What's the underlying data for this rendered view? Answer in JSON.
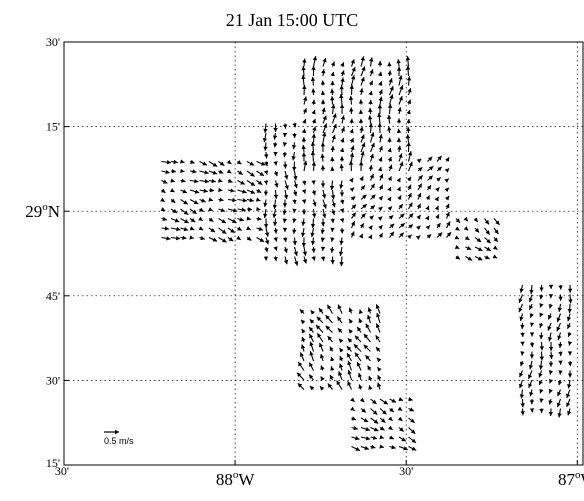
{
  "title": "21 Jan 15:00 UTC",
  "chart_data": {
    "type": "quiver",
    "title": "21 Jan 15:00 UTC",
    "xlim_deg_w": [
      88.5,
      86.9833
    ],
    "ylim_deg_n": [
      28.25,
      29.5
    ],
    "x_ticks": [
      {
        "lon_w": 88.5,
        "label": "30'"
      },
      {
        "lon_w": 88.0,
        "label": "88°W",
        "deg": "88",
        "sup": "o",
        "suffix": "W"
      },
      {
        "lon_w": 87.5,
        "label": "30'"
      },
      {
        "lon_w": 87.0,
        "label": "87°W",
        "deg": "87",
        "sup": "o",
        "suffix": "W"
      }
    ],
    "y_ticks": [
      {
        "lat_n": 29.5,
        "label": "30'"
      },
      {
        "lat_n": 29.25,
        "label": "15'"
      },
      {
        "lat_n": 29.0,
        "label": "29°N",
        "deg": "29",
        "sup": "o",
        "suffix": "N"
      },
      {
        "lat_n": 28.75,
        "label": "45'"
      },
      {
        "lat_n": 28.5,
        "label": "30'"
      },
      {
        "lat_n": 28.25,
        "label": "15'"
      }
    ],
    "grid": true,
    "scale_reference": {
      "label": "0.5 m/s",
      "speed_ms": 0.5,
      "placement": "bottom-left"
    },
    "vector_fields": [
      {
        "name": "",
        "lon_w": [
          87.8,
          87.47
        ],
        "lat_n": [
          29.11,
          29.44
        ],
        "u": 0.05,
        "v": 0.35
      },
      {
        "name": "",
        "lon_w": [
          88.22,
          87.93
        ],
        "lat_n": [
          28.9,
          29.16
        ],
        "u": 0.3,
        "v": -0.12
      },
      {
        "name": "",
        "lon_w": [
          87.93,
          87.67
        ],
        "lat_n": [
          28.84,
          29.28
        ],
        "u": 0.02,
        "v": -0.32
      },
      {
        "name": "",
        "lon_w": [
          87.67,
          87.38
        ],
        "lat_n": [
          28.9,
          29.15
        ],
        "u": 0.15,
        "v": 0.2
      },
      {
        "name": "",
        "lon_w": [
          87.38,
          87.22
        ],
        "lat_n": [
          28.84,
          29.0
        ],
        "u": 0.22,
        "v": -0.18
      },
      {
        "name": "",
        "lon_w": [
          87.8,
          87.56
        ],
        "lat_n": [
          28.47,
          28.72
        ],
        "u": -0.18,
        "v": 0.3
      },
      {
        "name": "",
        "lon_w": [
          87.67,
          87.47
        ],
        "lat_n": [
          28.3,
          28.47
        ],
        "u": 0.28,
        "v": -0.15
      },
      {
        "name": "",
        "lon_w": [
          87.17,
          87.01
        ],
        "lat_n": [
          28.4,
          28.8
        ],
        "u": -0.05,
        "v": -0.3
      }
    ]
  }
}
